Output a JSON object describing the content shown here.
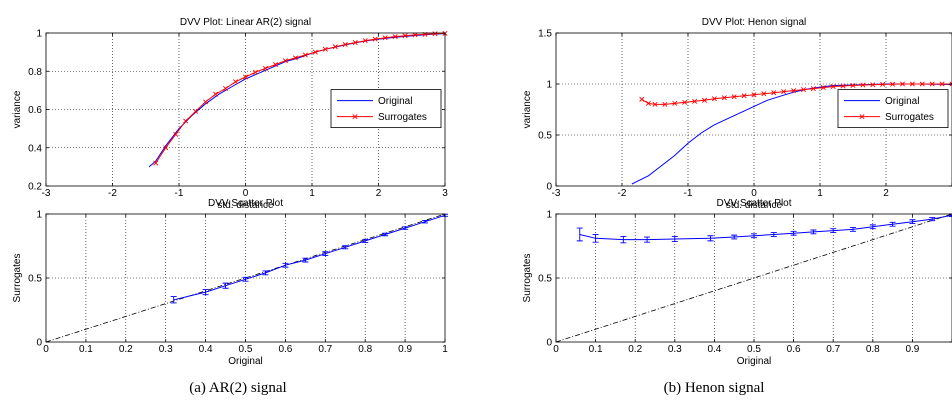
{
  "captions": [
    "(a) AR(2) signal",
    "(b) Henon signal"
  ],
  "chart_data": [
    {
      "type": "line",
      "title": "DVV Plot: Linear AR(2) signal",
      "xlabel": "std. distance",
      "ylabel": "variance",
      "xlim": [
        -3,
        3
      ],
      "ylim": [
        0.2,
        1
      ],
      "xticks": [
        -3,
        -2,
        -1,
        0,
        1,
        2,
        3
      ],
      "yticks": [
        0.2,
        0.4,
        0.6,
        0.8,
        1
      ],
      "xtick_labels": [
        "-3",
        "-2",
        "-1",
        "0",
        "1",
        "2",
        "3"
      ],
      "ytick_labels": [
        "0.2",
        "0.4",
        "0.6",
        "0.8",
        "1"
      ],
      "grid": true,
      "legend": "right",
      "series": [
        {
          "name": "Original",
          "color": "#0000ff",
          "marker": "none",
          "x": [
            -1.45,
            -1.35,
            -1.2,
            -1.0,
            -0.8,
            -0.6,
            -0.4,
            -0.2,
            0.0,
            0.2,
            0.4,
            0.6,
            0.8,
            1.0,
            1.2,
            1.4,
            1.6,
            1.8,
            2.0,
            2.2,
            2.4,
            2.6,
            2.8,
            3.0
          ],
          "y": [
            0.3,
            0.33,
            0.41,
            0.5,
            0.57,
            0.63,
            0.68,
            0.72,
            0.76,
            0.79,
            0.82,
            0.85,
            0.87,
            0.895,
            0.915,
            0.93,
            0.945,
            0.958,
            0.968,
            0.976,
            0.982,
            0.988,
            0.993,
            0.997
          ]
        },
        {
          "name": "Surrogates",
          "color": "#ff0000",
          "marker": "x",
          "x": [
            -1.35,
            -1.2,
            -1.05,
            -0.9,
            -0.75,
            -0.6,
            -0.45,
            -0.3,
            -0.15,
            0.0,
            0.15,
            0.3,
            0.45,
            0.6,
            0.75,
            0.9,
            1.05,
            1.2,
            1.35,
            1.5,
            1.65,
            1.8,
            1.95,
            2.1,
            2.25,
            2.4,
            2.55,
            2.7,
            2.85,
            3.0
          ],
          "y": [
            0.32,
            0.4,
            0.47,
            0.54,
            0.59,
            0.64,
            0.68,
            0.71,
            0.745,
            0.77,
            0.795,
            0.815,
            0.835,
            0.855,
            0.87,
            0.885,
            0.9,
            0.915,
            0.928,
            0.94,
            0.95,
            0.96,
            0.968,
            0.975,
            0.981,
            0.986,
            0.99,
            0.993,
            0.996,
            0.998
          ]
        }
      ]
    },
    {
      "type": "line",
      "title": "DVV Scatter Plot",
      "xlabel": "Original",
      "ylabel": "Surrogates",
      "xlim": [
        0,
        1
      ],
      "ylim": [
        0,
        1
      ],
      "xticks": [
        0,
        0.1,
        0.2,
        0.3,
        0.4,
        0.5,
        0.6,
        0.7,
        0.8,
        0.9,
        1
      ],
      "yticks": [
        0,
        0.5,
        1
      ],
      "xtick_labels": [
        "0",
        "0.1",
        "0.2",
        "0.3",
        "0.4",
        "0.5",
        "0.6",
        "0.7",
        "0.8",
        "0.9",
        "1"
      ],
      "ytick_labels": [
        "0",
        "0.5",
        "1"
      ],
      "grid": true,
      "reference_line": "y = x",
      "series": [
        {
          "color": "#0000ff",
          "marker": "errorbar",
          "x": [
            0.32,
            0.4,
            0.45,
            0.5,
            0.55,
            0.6,
            0.65,
            0.7,
            0.75,
            0.8,
            0.85,
            0.9,
            0.95,
            1.0
          ],
          "y": [
            0.33,
            0.39,
            0.44,
            0.49,
            0.54,
            0.6,
            0.64,
            0.69,
            0.74,
            0.79,
            0.84,
            0.89,
            0.94,
            0.99
          ],
          "err": [
            0.025,
            0.02,
            0.02,
            0.015,
            0.015,
            0.015,
            0.015,
            0.015,
            0.012,
            0.012,
            0.01,
            0.01,
            0.01,
            0.008
          ]
        }
      ]
    },
    {
      "type": "line",
      "title": "DVV Plot: Henon signal",
      "xlabel": "std. distance",
      "ylabel": "variance",
      "xlim": [
        -3,
        3
      ],
      "ylim": [
        0,
        1.5
      ],
      "xticks": [
        -3,
        -2,
        -1,
        0,
        1,
        2,
        3
      ],
      "yticks": [
        0,
        0.5,
        1,
        1.5
      ],
      "xtick_labels": [
        "-3",
        "-2",
        "-1",
        "0",
        "1",
        "2",
        ""
      ],
      "ytick_labels": [
        "0",
        "0.5",
        "1",
        "1.5"
      ],
      "grid": true,
      "legend": "right",
      "series": [
        {
          "name": "Original",
          "color": "#0000ff",
          "marker": "none",
          "x": [
            -1.85,
            -1.6,
            -1.4,
            -1.2,
            -1.0,
            -0.8,
            -0.6,
            -0.4,
            -0.2,
            0.0,
            0.2,
            0.4,
            0.6,
            0.8,
            1.0,
            1.2,
            1.5,
            2.0,
            2.5,
            3.0
          ],
          "y": [
            0.02,
            0.1,
            0.2,
            0.3,
            0.42,
            0.52,
            0.6,
            0.66,
            0.72,
            0.78,
            0.84,
            0.88,
            0.92,
            0.95,
            0.97,
            0.985,
            0.99,
            1.0,
            1.0,
            0.995
          ]
        },
        {
          "name": "Surrogates",
          "color": "#ff0000",
          "marker": "x",
          "x": [
            -1.7,
            -1.6,
            -1.5,
            -1.35,
            -1.2,
            -1.05,
            -0.9,
            -0.75,
            -0.6,
            -0.45,
            -0.3,
            -0.15,
            0.0,
            0.15,
            0.3,
            0.45,
            0.6,
            0.75,
            0.9,
            1.05,
            1.2,
            1.35,
            1.5,
            1.65,
            1.8,
            1.95,
            2.1,
            2.25,
            2.4,
            2.55,
            2.7,
            2.85,
            3.0
          ],
          "y": [
            0.85,
            0.81,
            0.8,
            0.8,
            0.81,
            0.82,
            0.83,
            0.84,
            0.855,
            0.865,
            0.875,
            0.885,
            0.895,
            0.905,
            0.915,
            0.925,
            0.935,
            0.945,
            0.955,
            0.965,
            0.975,
            0.98,
            0.985,
            0.99,
            0.993,
            0.996,
            0.998,
            1.0,
            1.0,
            1.0,
            1.0,
            1.0,
            1.0
          ]
        }
      ]
    },
    {
      "type": "line",
      "title": "DVV Scatter Plot",
      "xlabel": "Original",
      "ylabel": "Surrogates",
      "xlim": [
        0,
        1
      ],
      "ylim": [
        0,
        1
      ],
      "xticks": [
        0,
        0.1,
        0.2,
        0.3,
        0.4,
        0.5,
        0.6,
        0.7,
        0.8,
        0.9,
        1
      ],
      "yticks": [
        0,
        0.5,
        1
      ],
      "xtick_labels": [
        "0",
        "0.1",
        "0.2",
        "0.3",
        "0.4",
        "0.5",
        "0.6",
        "0.7",
        "0.8",
        "0.9",
        ""
      ],
      "ytick_labels": [
        "0",
        "0.5",
        "1"
      ],
      "grid": true,
      "reference_line": "y = x",
      "series": [
        {
          "color": "#0000ff",
          "marker": "errorbar",
          "x": [
            0.06,
            0.1,
            0.17,
            0.23,
            0.3,
            0.39,
            0.45,
            0.5,
            0.55,
            0.6,
            0.65,
            0.7,
            0.75,
            0.8,
            0.85,
            0.9,
            0.95,
            1.0
          ],
          "y": [
            0.84,
            0.81,
            0.8,
            0.8,
            0.805,
            0.81,
            0.82,
            0.83,
            0.84,
            0.85,
            0.86,
            0.87,
            0.88,
            0.9,
            0.92,
            0.94,
            0.96,
            0.99
          ],
          "err": [
            0.05,
            0.03,
            0.025,
            0.02,
            0.02,
            0.02,
            0.015,
            0.015,
            0.015,
            0.015,
            0.015,
            0.015,
            0.015,
            0.015,
            0.015,
            0.015,
            0.012,
            0.01
          ]
        }
      ]
    }
  ]
}
